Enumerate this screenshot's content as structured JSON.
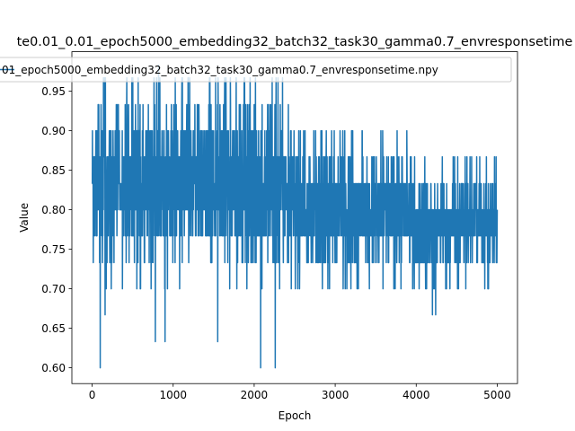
{
  "chart_data": {
    "type": "line",
    "title": "te0.01_0.01_epoch5000_embedding32_batch32_task30_gamma0.7_envresponsetime",
    "xlabel": "Epoch",
    "ylabel": "Value",
    "xlim": [
      -250,
      5250
    ],
    "ylim": [
      0.58,
      1.0
    ],
    "xticks": [
      0,
      1000,
      2000,
      3000,
      4000,
      5000
    ],
    "xtick_labels": [
      "0",
      "1000",
      "2000",
      "3000",
      "4000",
      "5000"
    ],
    "yticks": [
      0.6,
      0.65,
      0.7,
      0.75,
      0.8,
      0.85,
      0.9,
      0.95
    ],
    "ytick_labels": [
      "0.60",
      "0.65",
      "0.70",
      "0.75",
      "0.80",
      "0.85",
      "0.90",
      "0.95"
    ],
    "grid": false,
    "legend_position": "top-right",
    "series": [
      {
        "name": "01_epoch5000_embedding32_batch32_task30_gamma0.7_envresponsetime.npy",
        "color": "#1f77b4",
        "x_start": 0,
        "x_end": 5000,
        "phases": [
          {
            "x_range": [
              0,
              2500
            ],
            "min": 0.7,
            "max": 0.967,
            "values": [
              0.7,
              0.733,
              0.767,
              0.8,
              0.833,
              0.867,
              0.9,
              0.933,
              0.967
            ]
          },
          {
            "x_range": [
              2500,
              3900
            ],
            "min": 0.7,
            "max": 0.9,
            "values": [
              0.7,
              0.733,
              0.767,
              0.8,
              0.833,
              0.867,
              0.9
            ]
          },
          {
            "x_range": [
              3900,
              5000
            ],
            "min": 0.7,
            "max": 0.867,
            "values": [
              0.7,
              0.733,
              0.767,
              0.8,
              0.833,
              0.867
            ]
          }
        ],
        "spikes": [
          {
            "x": 100,
            "y": 0.6
          },
          {
            "x": 160,
            "y": 0.667
          },
          {
            "x": 780,
            "y": 0.633
          },
          {
            "x": 820,
            "y": 0.983
          },
          {
            "x": 900,
            "y": 0.633
          },
          {
            "x": 1550,
            "y": 0.633
          },
          {
            "x": 2080,
            "y": 0.6
          },
          {
            "x": 2260,
            "y": 0.6
          },
          {
            "x": 4200,
            "y": 0.667
          },
          {
            "x": 4240,
            "y": 0.667
          }
        ]
      }
    ]
  }
}
